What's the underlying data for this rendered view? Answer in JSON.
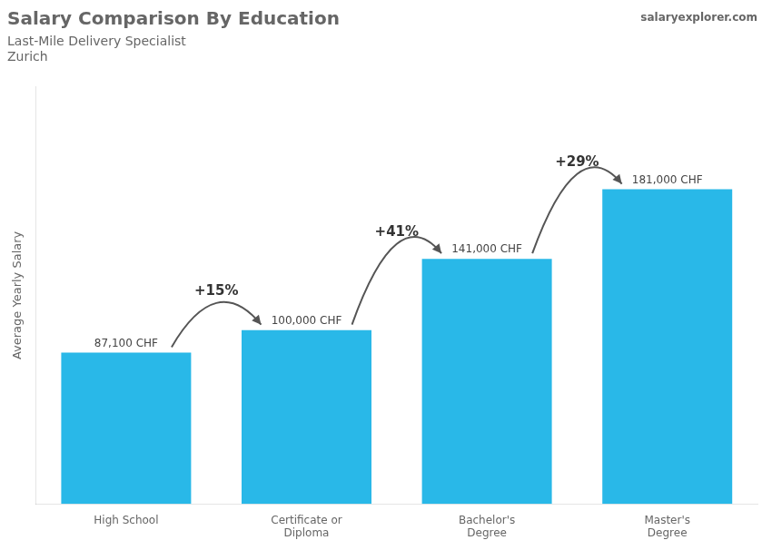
{
  "chart_data": {
    "type": "bar",
    "title": "Salary Comparison By Education",
    "subtitle": "Last-Mile Delivery Specialist",
    "location": "Zurich",
    "y_label": "Average Yearly Salary",
    "watermark": "salaryexplorer.com",
    "categories": [
      "High School",
      "Certificate or\nDiploma",
      "Bachelor's\nDegree",
      "Master's\nDegree"
    ],
    "values": [
      87100,
      100000,
      141000,
      181000
    ],
    "value_labels": [
      "87,100 CHF",
      "100,000 CHF",
      "141,000 CHF",
      "181,000 CHF"
    ],
    "pct_changes": [
      "+15%",
      "+41%",
      "+29%"
    ],
    "color": "#29B8E8",
    "ylim": [
      0,
      240000
    ],
    "grid": false,
    "data_labels": true,
    "tick_labels": "x"
  }
}
